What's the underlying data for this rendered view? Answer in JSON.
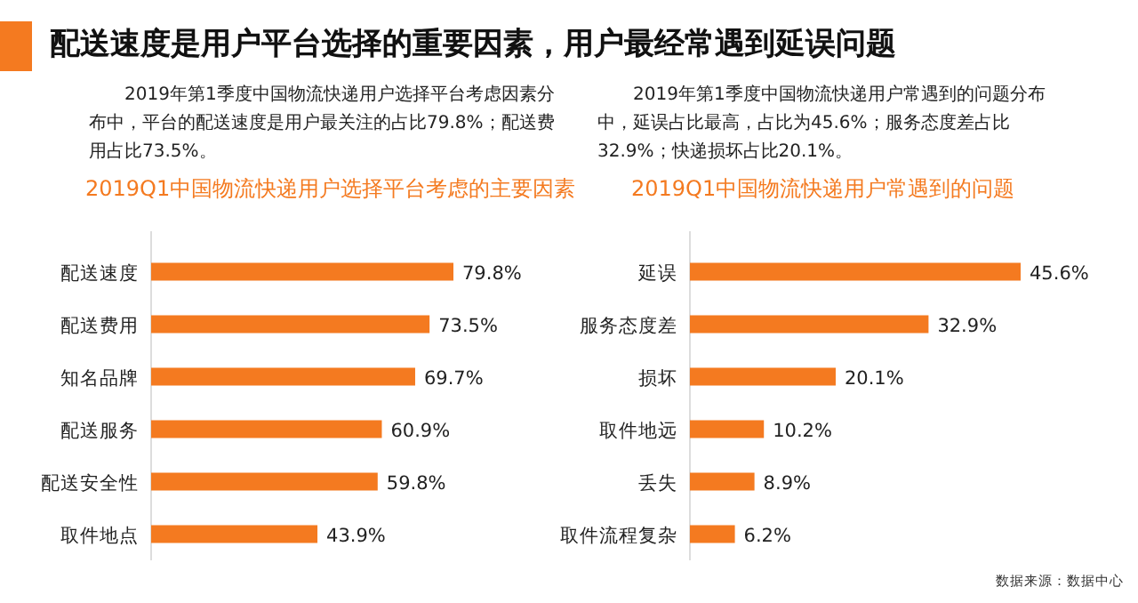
{
  "chart_data": [
    {
      "type": "bar",
      "orientation": "horizontal",
      "title": "2019Q1中国物流快递用户选择平台考虑的主要因素",
      "subtitle": "2019年第1季度中国物流快递用户选择平台考虑因素分布中，平台的配送速度是用户最关注的占比79.8%；配送费用占比73.5%。",
      "annotations": [
        "配送速度是用户平台选择的重要因素，用户最经常遇到延误问题"
      ],
      "categories": [
        "配送速度",
        "配送费用",
        "知名品牌",
        "配送服务",
        "配送安全性",
        "取件地点"
      ],
      "values": [
        79.8,
        73.5,
        69.7,
        60.9,
        59.8,
        43.9
      ],
      "value_labels": [
        "79.8%",
        "73.5%",
        "69.7%",
        "60.9%",
        "59.8%",
        "43.9%"
      ],
      "color": "#f47a20"
    },
    {
      "type": "bar",
      "orientation": "horizontal",
      "title": "2019Q1中国物流快递用户常遇到的问题",
      "subtitle": "2019年第1季度中国物流快递用户常遇到的问题分布中，延误占比最高，占比为45.6%；服务态度差占比32.9%；快递损坏占比20.1%。",
      "annotations": [
        "数据来源：数据中心"
      ],
      "categories": [
        "延误",
        "服务态度差",
        "损坏",
        "取件地远",
        "丢失",
        "取件流程复杂"
      ],
      "values": [
        45.6,
        32.9,
        20.1,
        10.2,
        8.9,
        6.2
      ],
      "value_labels": [
        "45.6%",
        "32.9%",
        "20.1%",
        "10.2%",
        "8.9%",
        "6.2%"
      ],
      "color": "#f47a20"
    }
  ]
}
